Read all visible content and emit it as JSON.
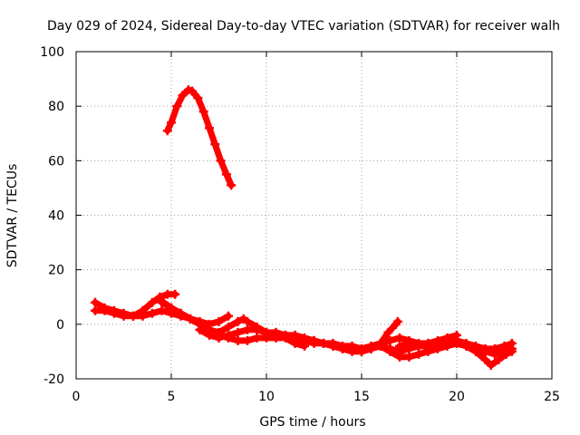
{
  "chart_data": {
    "type": "scatter",
    "title": "Day 029 of 2024, Sidereal Day-to-day VTEC variation (SDTVAR) for receiver walh",
    "xlabel": "GPS time / hours",
    "ylabel": "SDTVAR / TECUs",
    "xlim": [
      0,
      25
    ],
    "ylim": [
      -20,
      100
    ],
    "xticks": [
      0,
      5,
      10,
      15,
      20,
      25
    ],
    "yticks": [
      -20,
      0,
      20,
      40,
      60,
      80,
      100
    ],
    "grid": true,
    "color": "#ff0000",
    "series": [
      {
        "name": "high-arc",
        "points": [
          [
            4.8,
            71
          ],
          [
            5.0,
            74
          ],
          [
            5.3,
            80
          ],
          [
            5.6,
            84
          ],
          [
            5.9,
            86
          ],
          [
            6.1,
            85.5
          ],
          [
            6.4,
            83
          ],
          [
            6.7,
            78
          ],
          [
            7.0,
            72
          ],
          [
            7.3,
            66
          ],
          [
            7.6,
            60
          ],
          [
            7.9,
            55
          ],
          [
            8.15,
            51
          ]
        ]
      },
      {
        "name": "track-1",
        "points": [
          [
            1.0,
            5
          ],
          [
            1.5,
            5
          ],
          [
            2.0,
            4
          ],
          [
            2.5,
            3
          ],
          [
            3.0,
            3
          ],
          [
            3.5,
            5
          ],
          [
            4.0,
            8
          ],
          [
            4.4,
            10
          ],
          [
            4.8,
            11
          ],
          [
            5.2,
            11
          ]
        ]
      },
      {
        "name": "track-2",
        "points": [
          [
            1.0,
            8
          ],
          [
            1.5,
            6
          ],
          [
            2.0,
            5
          ],
          [
            2.5,
            4
          ],
          [
            3.0,
            3
          ],
          [
            3.5,
            3
          ],
          [
            4.0,
            4
          ],
          [
            4.5,
            5
          ],
          [
            5.0,
            4
          ],
          [
            5.5,
            3
          ],
          [
            6.0,
            2
          ],
          [
            6.5,
            1
          ],
          [
            7.0,
            0
          ],
          [
            7.5,
            1
          ],
          [
            8.0,
            3
          ]
        ]
      },
      {
        "name": "track-3",
        "points": [
          [
            4.5,
            8
          ],
          [
            5.0,
            6
          ],
          [
            5.5,
            4
          ],
          [
            6.0,
            2
          ],
          [
            6.5,
            0
          ],
          [
            7.0,
            -2
          ],
          [
            7.5,
            -4
          ],
          [
            8.0,
            -5
          ],
          [
            8.5,
            -6
          ],
          [
            9.0,
            -6
          ],
          [
            9.5,
            -5
          ],
          [
            10.0,
            -5
          ],
          [
            10.5,
            -5
          ],
          [
            11.0,
            -5
          ],
          [
            11.5,
            -7
          ],
          [
            12.0,
            -8
          ]
        ]
      },
      {
        "name": "track-4",
        "points": [
          [
            4.6,
            8
          ],
          [
            5.0,
            6
          ],
          [
            5.5,
            4
          ],
          [
            6.0,
            2
          ],
          [
            6.5,
            0
          ],
          [
            7.0,
            -2
          ],
          [
            7.5,
            -3
          ],
          [
            8.0,
            -1
          ],
          [
            8.5,
            1
          ],
          [
            8.8,
            2
          ],
          [
            9.0,
            1
          ],
          [
            9.5,
            -1
          ],
          [
            10.0,
            -3
          ],
          [
            10.5,
            -4
          ],
          [
            11.0,
            -4
          ],
          [
            11.5,
            -4
          ],
          [
            12.0,
            -5
          ],
          [
            12.5,
            -6
          ],
          [
            13.0,
            -7
          ],
          [
            13.5,
            -7
          ],
          [
            14.0,
            -8
          ],
          [
            14.5,
            -8
          ],
          [
            15.0,
            -9
          ],
          [
            15.5,
            -8
          ],
          [
            16.0,
            -7
          ],
          [
            16.5,
            -6
          ],
          [
            17.0,
            -5
          ],
          [
            17.5,
            -6
          ],
          [
            18.0,
            -7
          ],
          [
            18.5,
            -7
          ],
          [
            19.0,
            -6
          ],
          [
            19.5,
            -5
          ],
          [
            20.0,
            -4
          ]
        ]
      },
      {
        "name": "track-5",
        "points": [
          [
            6.5,
            -2
          ],
          [
            7.0,
            -4
          ],
          [
            7.5,
            -5
          ],
          [
            8.0,
            -4
          ],
          [
            8.5,
            -3
          ],
          [
            9.0,
            -2
          ],
          [
            9.5,
            -2
          ],
          [
            10.0,
            -3
          ],
          [
            10.5,
            -3
          ],
          [
            11.0,
            -4
          ],
          [
            11.5,
            -5
          ],
          [
            12.0,
            -6
          ],
          [
            12.5,
            -6
          ],
          [
            13.0,
            -7
          ],
          [
            13.5,
            -8
          ],
          [
            14.0,
            -9
          ],
          [
            14.5,
            -9
          ],
          [
            15.0,
            -10
          ],
          [
            15.5,
            -9
          ],
          [
            16.0,
            -8
          ],
          [
            16.5,
            -9
          ],
          [
            17.0,
            -10
          ],
          [
            17.5,
            -9
          ],
          [
            18.0,
            -8
          ],
          [
            18.5,
            -7
          ],
          [
            19.0,
            -7
          ],
          [
            19.5,
            -6
          ],
          [
            20.0,
            -6
          ],
          [
            20.5,
            -7
          ],
          [
            21.0,
            -8
          ],
          [
            21.5,
            -9
          ],
          [
            22.0,
            -9
          ],
          [
            22.5,
            -8
          ],
          [
            22.9,
            -7
          ]
        ]
      },
      {
        "name": "track-6",
        "points": [
          [
            12.0,
            -6
          ],
          [
            12.5,
            -7
          ],
          [
            13.0,
            -7
          ],
          [
            13.5,
            -8
          ],
          [
            14.0,
            -9
          ],
          [
            14.5,
            -10
          ],
          [
            15.0,
            -10
          ],
          [
            15.5,
            -9
          ],
          [
            16.0,
            -7
          ],
          [
            16.4,
            -3
          ],
          [
            16.8,
            0
          ],
          [
            16.9,
            1
          ]
        ]
      },
      {
        "name": "track-7",
        "points": [
          [
            16.0,
            -8
          ],
          [
            16.5,
            -10
          ],
          [
            17.0,
            -12
          ],
          [
            17.5,
            -12
          ],
          [
            18.0,
            -11
          ],
          [
            18.5,
            -10
          ],
          [
            19.0,
            -9
          ],
          [
            19.5,
            -8
          ],
          [
            20.0,
            -7
          ],
          [
            20.5,
            -8
          ],
          [
            21.0,
            -10
          ],
          [
            21.5,
            -13
          ],
          [
            21.8,
            -15
          ],
          [
            22.2,
            -13
          ],
          [
            22.6,
            -11
          ],
          [
            22.9,
            -10
          ]
        ]
      },
      {
        "name": "track-8",
        "points": [
          [
            17.0,
            -8
          ],
          [
            17.5,
            -7
          ],
          [
            18.0,
            -8
          ],
          [
            18.5,
            -8
          ],
          [
            19.0,
            -7
          ],
          [
            19.5,
            -6
          ],
          [
            20.0,
            -7
          ],
          [
            20.5,
            -8
          ],
          [
            21.0,
            -9
          ],
          [
            21.5,
            -10
          ],
          [
            22.0,
            -11
          ],
          [
            22.5,
            -10
          ],
          [
            22.9,
            -9
          ]
        ]
      }
    ]
  }
}
